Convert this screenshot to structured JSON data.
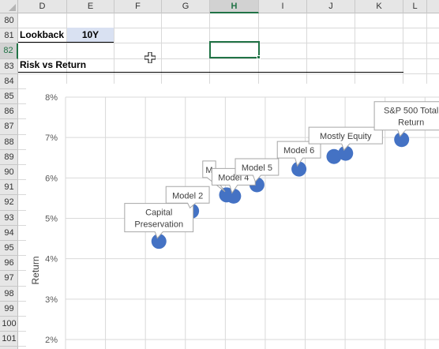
{
  "columns": [
    "D",
    "E",
    "F",
    "G",
    "H",
    "I",
    "J",
    "K",
    "L"
  ],
  "selected_column": "H",
  "rows": [
    "80",
    "81",
    "82",
    "83",
    "84",
    "85",
    "86",
    "87",
    "88",
    "89",
    "90",
    "91",
    "92",
    "93",
    "94",
    "95",
    "96",
    "97",
    "98",
    "99",
    "100",
    "101"
  ],
  "selected_row": "82",
  "cells": {
    "lookback_label": "Lookback",
    "lookback_value": "10Y",
    "section_title": "Risk vs Return"
  },
  "chart_data": {
    "type": "scatter",
    "title": "",
    "xlabel": "",
    "ylabel": "Return",
    "ylim": [
      0.02,
      0.08
    ],
    "yticks": [
      "8%",
      "7%",
      "6%",
      "5%",
      "4%",
      "3%",
      "2%"
    ],
    "xlim": [
      0,
      0.16
    ],
    "marker_color": "#4472c4",
    "points": [
      {
        "label": "Capital Preservation",
        "x": 0.04,
        "y": 0.0443
      },
      {
        "label": "Model 2",
        "x": 0.054,
        "y": 0.0518
      },
      {
        "label": "M",
        "x": 0.069,
        "y": 0.0558
      },
      {
        "label": "Model 4",
        "x": 0.072,
        "y": 0.0555
      },
      {
        "label": "Model 5",
        "x": 0.082,
        "y": 0.0583
      },
      {
        "label": "Model 6",
        "x": 0.1,
        "y": 0.0622
      },
      {
        "label": "",
        "x": 0.115,
        "y": 0.0653
      },
      {
        "label": "Mostly Equity",
        "x": 0.12,
        "y": 0.0661
      },
      {
        "label": "S&P 500 Total Return",
        "x": 0.144,
        "y": 0.0695
      }
    ]
  }
}
